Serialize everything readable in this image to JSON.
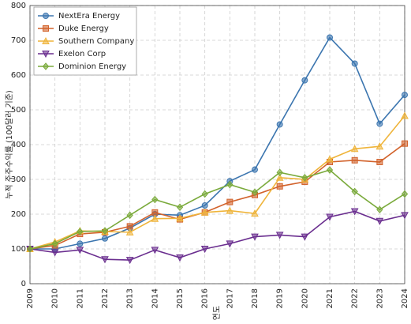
{
  "chart_data": {
    "type": "line",
    "x_label": "연도",
    "y_label": "누적 주주수익률 (100달러 기준)",
    "categories": [
      "2009",
      "2010",
      "2011",
      "2012",
      "2013",
      "2014",
      "2015",
      "2016",
      "2017",
      "2018",
      "2019",
      "2020",
      "2021",
      "2022",
      "2023",
      "2024"
    ],
    "series": [
      {
        "name": "NextEra Energy",
        "color": "#3b75af",
        "marker": "circle",
        "values": [
          100,
          100,
          115,
          130,
          160,
          200,
          197,
          225,
          295,
          328,
          458,
          585,
          708,
          633,
          460,
          543
        ]
      },
      {
        "name": "Duke Energy",
        "color": "#d2622b",
        "marker": "square",
        "values": [
          100,
          110,
          143,
          148,
          165,
          205,
          185,
          205,
          235,
          255,
          280,
          293,
          350,
          355,
          350,
          403
        ]
      },
      {
        "name": "Southern Company",
        "color": "#efb43a",
        "marker": "triangle-up",
        "values": [
          100,
          120,
          152,
          150,
          148,
          187,
          188,
          205,
          210,
          202,
          305,
          300,
          358,
          388,
          395,
          483
        ]
      },
      {
        "name": "Exelon Corp",
        "color": "#6a2e8f",
        "marker": "triangle-down",
        "values": [
          100,
          90,
          97,
          70,
          68,
          97,
          75,
          100,
          115,
          135,
          140,
          135,
          192,
          208,
          180,
          197
        ]
      },
      {
        "name": "Dominion Energy",
        "color": "#7aaa3b",
        "marker": "diamond",
        "values": [
          100,
          115,
          150,
          152,
          197,
          242,
          220,
          258,
          285,
          263,
          320,
          305,
          327,
          265,
          213,
          258
        ]
      }
    ],
    "ylim": [
      0,
      800
    ],
    "yticks": [
      0,
      100,
      200,
      300,
      400,
      500,
      600,
      700,
      800
    ],
    "grid": true,
    "legend": "upper-left"
  }
}
